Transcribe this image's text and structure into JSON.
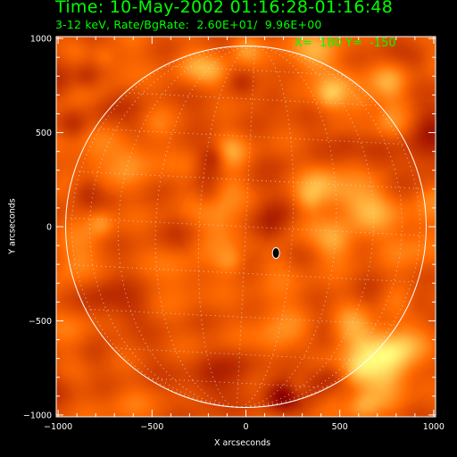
{
  "header": {
    "title": "Time: 10-May-2002 01:16:28-01:16:48",
    "subtitle": "3-12 keV, Rate/BgRate:  2.60E+01/  9.96E+00",
    "coord_readout": "X=  180 Y=  -150"
  },
  "map": {
    "xlabel": "X arcseconds",
    "ylabel": "Y arcseconds",
    "xlim": [
      -1010,
      1010
    ],
    "ylim": [
      -1010,
      1010
    ],
    "x_ticks": [
      -1000,
      -500,
      0,
      500,
      1000
    ],
    "y_ticks": [
      -1000,
      -500,
      0,
      500,
      1000
    ],
    "x_tick_labels": [
      "−1000",
      "−500",
      "0",
      "500",
      "1000"
    ],
    "y_tick_labels": [
      "−1000",
      "−500",
      "0",
      "500",
      "1000"
    ],
    "solar_radius_arcsec": 960,
    "source_position": [
      160,
      -140
    ],
    "colormap": "red-orange-yellow",
    "colors": {
      "background": "#000000",
      "axes": "#ffffff",
      "limb": "#ffffff",
      "grid": "#dddddd",
      "annotation": "#00ff00",
      "low": "#8b0000",
      "mid": "#ff6a00",
      "high": "#ffff80"
    },
    "grid": true
  }
}
